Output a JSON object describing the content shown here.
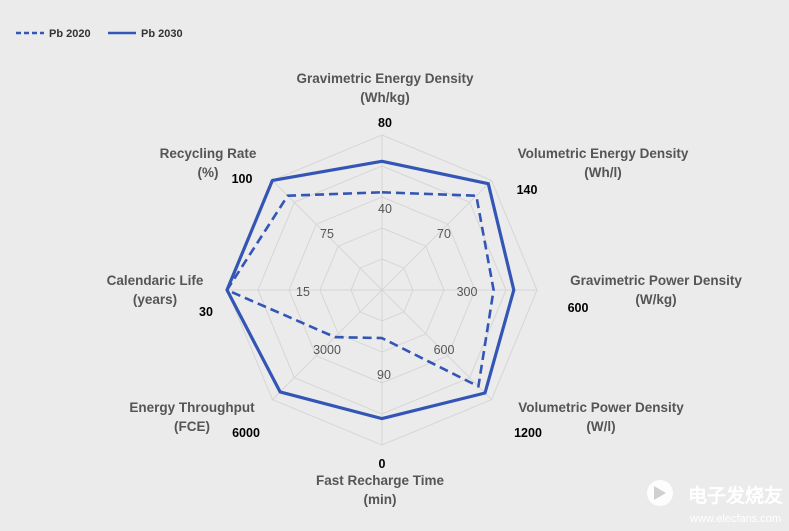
{
  "chart_data": {
    "type": "radar",
    "categories": [
      "Gravimetric Energy Density\n(Wh/kg)",
      "Volumetric Energy Density\n(Wh/l)",
      "Gravimetric Power Density\n(W/kg)",
      "Volumetric Power Density\n(W/l)",
      "Fast Recharge Time\n(min)",
      "Energy Throughput\n(FCE)",
      "Calendaric Life\n(years)",
      "Recycling Rate\n(%)"
    ],
    "axis_max_labels": [
      "80",
      "140",
      "600",
      "1200",
      "0",
      "6000",
      "30",
      "100"
    ],
    "axis_mid_labels": [
      "40",
      "70",
      "300",
      "600",
      "90",
      "3000",
      "15",
      "75"
    ],
    "rings": 5,
    "grid": true,
    "legend_position": "top-left",
    "series": [
      {
        "name": "Pb 2020",
        "style": "dashed",
        "values": [
          0.63,
          0.86,
          0.72,
          0.88,
          0.31,
          0.43,
          1.0,
          0.86
        ]
      },
      {
        "name": "Pb 2030",
        "style": "solid",
        "values": [
          0.83,
          0.97,
          0.85,
          0.94,
          0.83,
          0.93,
          1.0,
          1.0
        ]
      }
    ],
    "colors": {
      "series": "#3355b5",
      "grid": "#d6d6d6",
      "background": "#ebebeb"
    }
  },
  "watermark": {
    "text": "电子发烧友",
    "url": "www.elecfans.com"
  }
}
